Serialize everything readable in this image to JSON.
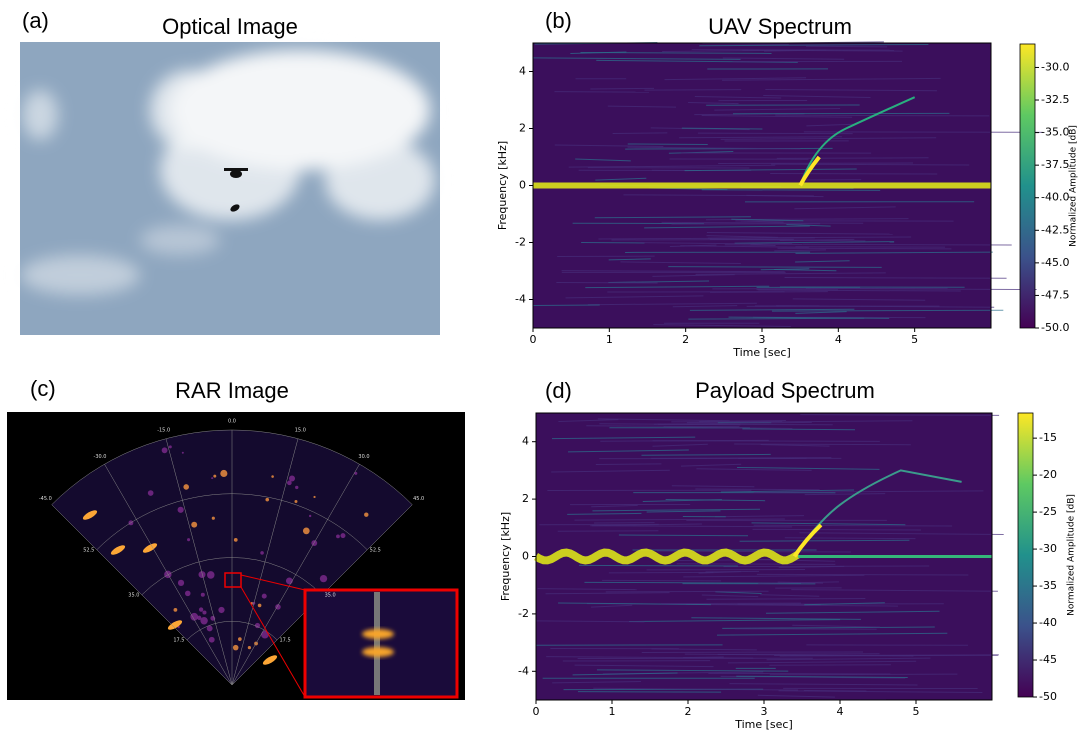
{
  "panels": [
    {
      "label": "(a)",
      "title": "Optical Image"
    },
    {
      "label": "(b)",
      "title": "UAV Spectrum",
      "xlabel": "Time [sec]",
      "ylabel": "Frequency [kHz]",
      "xlim": [
        0,
        6
      ],
      "ylim": [
        -5,
        5
      ],
      "xticks": [
        0,
        1,
        2,
        3,
        4,
        5
      ],
      "yticks": [
        -4,
        -2,
        0,
        2,
        4
      ],
      "colorbar": {
        "label": "Normalized Amplitude [dB]",
        "lim": [
          -50,
          -28.2
        ],
        "ticks": [
          {
            "value": -30,
            "label": "-30.0"
          },
          {
            "value": -32.5,
            "label": "-32.5"
          },
          {
            "value": -35,
            "label": "-35.0"
          },
          {
            "value": -37.5,
            "label": "-37.5"
          },
          {
            "value": -40,
            "label": "-40.0"
          },
          {
            "value": -42.5,
            "label": "-42.5"
          },
          {
            "value": -45,
            "label": "-45.0"
          },
          {
            "value": -47.5,
            "label": "-47.5"
          },
          {
            "value": -50,
            "label": "-50.0"
          }
        ]
      }
    },
    {
      "label": "(c)",
      "title": "RAR Image",
      "angle_labels": [
        "-45.0",
        "-30.0",
        "-15.0",
        "0.0",
        "15.0",
        "30.0",
        "45.0"
      ],
      "range_labels": [
        "52.5",
        "35.0",
        "17.5"
      ]
    },
    {
      "label": "(d)",
      "title": "Payload Spectrum",
      "xlabel": "Time [sec]",
      "ylabel": "Frequency [kHz]",
      "xlim": [
        0,
        6
      ],
      "ylim": [
        -5,
        5
      ],
      "xticks": [
        0,
        1,
        2,
        3,
        4,
        5
      ],
      "yticks": [
        -4,
        -2,
        0,
        2,
        4
      ],
      "colorbar": {
        "label": "Normalized Amplitude [dB]",
        "lim": [
          -50,
          -11.6
        ],
        "ticks": [
          -15,
          -20,
          -25,
          -30,
          -35,
          -40,
          -45,
          -50
        ]
      }
    }
  ]
}
